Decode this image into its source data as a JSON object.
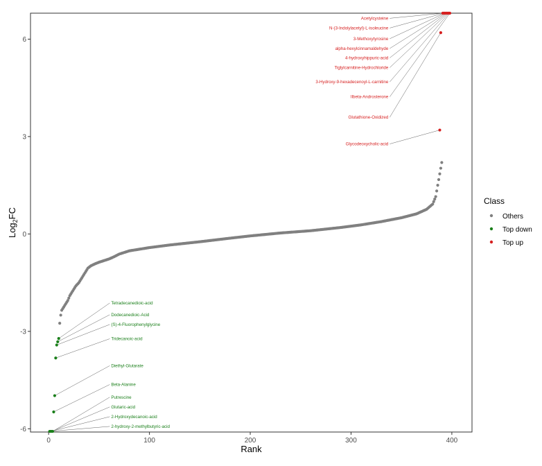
{
  "chart_data": {
    "type": "scatter",
    "xlabel": "Rank",
    "ylabel_main": "Log",
    "ylabel_sub": "2",
    "ylabel_tail": "FC",
    "xlim": [
      -18,
      420
    ],
    "ylim": [
      -6.1,
      6.8
    ],
    "xticks": [
      0,
      100,
      200,
      300,
      400
    ],
    "yticks": [
      -6,
      -3,
      0,
      3,
      6
    ],
    "grid": false,
    "legend_position": "right",
    "legend": {
      "title": "Class",
      "entries": [
        {
          "label": "Others",
          "color": "#808080"
        },
        {
          "label": "Top down",
          "color": "#1a7f1a"
        },
        {
          "label": "Top up",
          "color": "#d62020"
        }
      ]
    },
    "others_curve": [
      [
        11,
        -2.75
      ],
      [
        12,
        -2.5
      ],
      [
        13,
        -2.35
      ],
      [
        15,
        -2.25
      ],
      [
        17,
        -2.15
      ],
      [
        19,
        -2.05
      ],
      [
        21,
        -1.9
      ],
      [
        23,
        -1.8
      ],
      [
        25,
        -1.7
      ],
      [
        27,
        -1.6
      ],
      [
        30,
        -1.5
      ],
      [
        33,
        -1.35
      ],
      [
        36,
        -1.2
      ],
      [
        39,
        -1.05
      ],
      [
        42,
        -0.98
      ],
      [
        46,
        -0.92
      ],
      [
        50,
        -0.87
      ],
      [
        55,
        -0.82
      ],
      [
        60,
        -0.77
      ],
      [
        65,
        -0.7
      ],
      [
        70,
        -0.62
      ],
      [
        80,
        -0.52
      ],
      [
        100,
        -0.42
      ],
      [
        120,
        -0.34
      ],
      [
        150,
        -0.24
      ],
      [
        180,
        -0.13
      ],
      [
        200,
        -0.06
      ],
      [
        230,
        0.03
      ],
      [
        260,
        0.1
      ],
      [
        290,
        0.2
      ],
      [
        310,
        0.28
      ],
      [
        330,
        0.38
      ],
      [
        350,
        0.5
      ],
      [
        365,
        0.62
      ],
      [
        375,
        0.76
      ],
      [
        381,
        0.92
      ],
      [
        384,
        1.15
      ],
      [
        386,
        1.5
      ],
      [
        388,
        1.85
      ],
      [
        390,
        2.2
      ]
    ],
    "top_up": [
      {
        "name": "Acetylcysteine",
        "rank": 391,
        "value": 6.8
      },
      {
        "name": "N-(3-Indolylacetyl)-L-isoleucine",
        "rank": 392,
        "value": 6.8
      },
      {
        "name": "3-Methoxytyrosine",
        "rank": 393,
        "value": 6.8
      },
      {
        "name": "alpha-hexylcinnamaldehyde",
        "rank": 394,
        "value": 6.8
      },
      {
        "name": "4-hydroxyhippuric-acid",
        "rank": 395,
        "value": 6.8
      },
      {
        "name": "Tiglylcarnitine-Hydrochloride",
        "rank": 396,
        "value": 6.8
      },
      {
        "name": "3-Hydroxy-9-hexadecenoyl-L-carnitine",
        "rank": 397,
        "value": 6.8
      },
      {
        "name": "Ilbeta-Androsterone",
        "rank": 398,
        "value": 6.8
      },
      {
        "name": "Glutathione-Oxidized",
        "rank": 389,
        "value": 6.2
      },
      {
        "name": "Glycodeoxycholic-acid",
        "rank": 388,
        "value": 3.2
      }
    ],
    "top_down": [
      {
        "name": "Tetradecanedioic-acid",
        "rank": 10,
        "value": -3.22
      },
      {
        "name": "Dodecanedioic-Acid",
        "rank": 9,
        "value": -3.32
      },
      {
        "name": "(S)-4-Fluorophenylglycine",
        "rank": 8,
        "value": -3.42
      },
      {
        "name": "Tridecanoic-acid",
        "rank": 7,
        "value": -3.82
      },
      {
        "name": "Diethyl-Glutarate",
        "rank": 6,
        "value": -4.98
      },
      {
        "name": "Beta-Alanine",
        "rank": 5,
        "value": -5.48
      },
      {
        "name": "Putrescine",
        "rank": 4,
        "value": -6.08
      },
      {
        "name": "Glutaric-acid",
        "rank": 3,
        "value": -6.08
      },
      {
        "name": "2-Hydroxydecanoic-acid",
        "rank": 2,
        "value": -6.08
      },
      {
        "name": "2-hydroxy-2-methylbutyric-acid",
        "rank": 1,
        "value": -6.08
      }
    ],
    "up_label_rows": [
      6.6,
      6.3,
      5.97,
      5.67,
      5.38,
      5.08,
      4.64,
      4.18,
      3.55,
      2.73
    ],
    "down_label_rows": [
      -2.17,
      -2.53,
      -2.83,
      -3.27,
      -4.1,
      -4.68,
      -5.07,
      -5.37,
      -5.67,
      -5.97
    ],
    "up_label_x": 337,
    "down_label_x": 62
  },
  "colors": {
    "others": "#808080",
    "down": "#1a7f1a",
    "up": "#d62020",
    "connector": "#606060",
    "panel_border": "#333333"
  }
}
